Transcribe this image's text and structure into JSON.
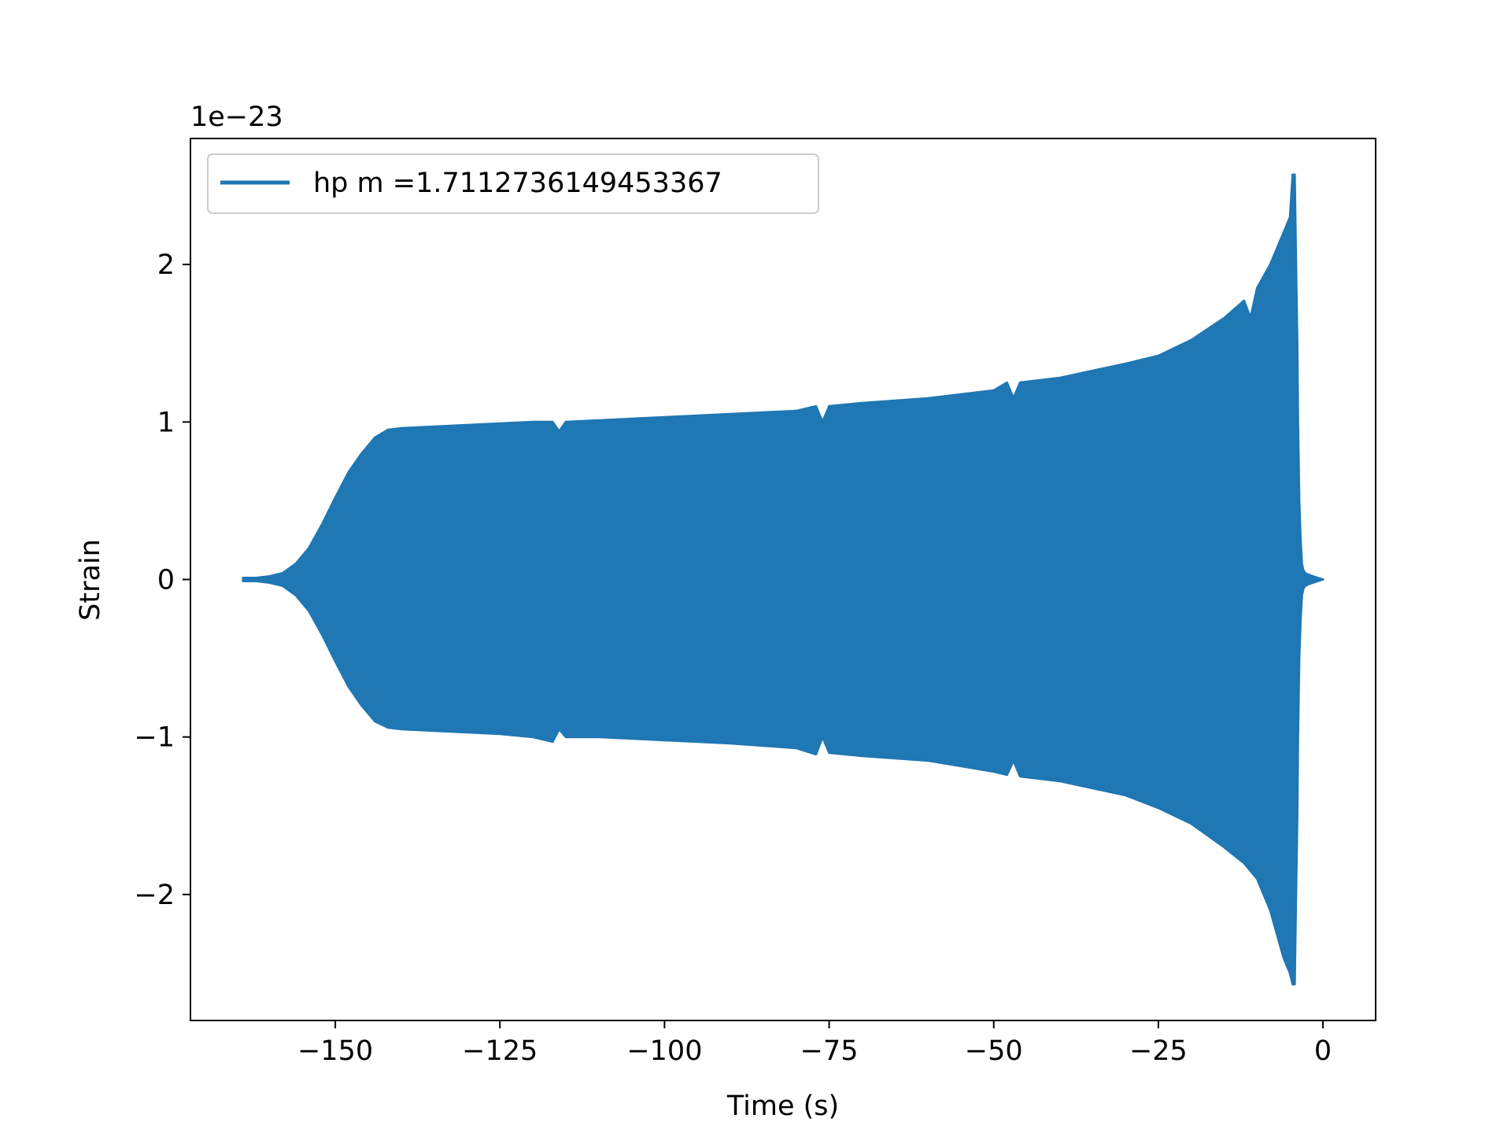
{
  "chart_data": {
    "type": "line",
    "title": "",
    "xlabel": "Time (s)",
    "ylabel": "Strain",
    "y_offset_label": "1e−23",
    "xlim": [
      -172,
      8
    ],
    "ylim": [
      -2.8,
      2.8
    ],
    "grid": false,
    "legend_placement": "upper-left",
    "x_ticks": [
      -150,
      -125,
      -100,
      -75,
      -50,
      -25,
      0
    ],
    "x_tick_labels": [
      "−150",
      "−125",
      "−100",
      "−75",
      "−50",
      "−25",
      "0"
    ],
    "y_ticks": [
      -2,
      -1,
      0,
      1,
      2
    ],
    "y_tick_labels": [
      "−2",
      "−1",
      "0",
      "1",
      "2"
    ],
    "series": [
      {
        "name": "hp m =1.7112736149453367",
        "color": "#1f77b4",
        "envelope": {
          "t": [
            -164,
            -162,
            -160,
            -158,
            -156,
            -154,
            -152,
            -150,
            -148,
            -146,
            -144,
            -142,
            -140,
            -135,
            -130,
            -125,
            -120,
            -117,
            -116,
            -115,
            -110,
            -100,
            -90,
            -80,
            -77,
            -76,
            -75,
            -70,
            -60,
            -50,
            -48,
            -47,
            -46,
            -40,
            -30,
            -25,
            -20,
            -15,
            -12,
            -11,
            -10,
            -8,
            -7,
            -6,
            -5,
            -4.6,
            -4.3,
            -4.1,
            -3.9,
            -3.8,
            -3.6,
            -3.4,
            -3.2,
            -3.0,
            -2.7,
            -2.2,
            -1.5,
            -0.8,
            0
          ],
          "upper": [
            0.01,
            0.01,
            0.02,
            0.04,
            0.1,
            0.2,
            0.35,
            0.52,
            0.68,
            0.8,
            0.9,
            0.95,
            0.96,
            0.97,
            0.98,
            0.99,
            1.0,
            1.0,
            0.94,
            1.0,
            1.01,
            1.03,
            1.05,
            1.07,
            1.1,
            1.0,
            1.1,
            1.12,
            1.15,
            1.2,
            1.25,
            1.15,
            1.25,
            1.28,
            1.37,
            1.42,
            1.52,
            1.66,
            1.77,
            1.66,
            1.85,
            2.0,
            2.1,
            2.2,
            2.3,
            2.57,
            2.57,
            2.0,
            1.5,
            1.0,
            0.5,
            0.25,
            0.1,
            0.06,
            0.04,
            0.03,
            0.02,
            0.01,
            0.0
          ],
          "lower": [
            -0.01,
            -0.01,
            -0.02,
            -0.04,
            -0.1,
            -0.2,
            -0.35,
            -0.52,
            -0.68,
            -0.8,
            -0.9,
            -0.94,
            -0.95,
            -0.96,
            -0.97,
            -0.98,
            -1.0,
            -1.03,
            -0.95,
            -1.0,
            -1.0,
            -1.02,
            -1.04,
            -1.07,
            -1.11,
            -1.0,
            -1.1,
            -1.12,
            -1.15,
            -1.22,
            -1.24,
            -1.15,
            -1.25,
            -1.28,
            -1.37,
            -1.45,
            -1.55,
            -1.7,
            -1.8,
            -1.85,
            -1.9,
            -2.1,
            -2.25,
            -2.4,
            -2.5,
            -2.57,
            -2.57,
            -2.0,
            -1.5,
            -1.0,
            -0.5,
            -0.25,
            -0.1,
            -0.06,
            -0.04,
            -0.03,
            -0.02,
            -0.01,
            0.0
          ]
        }
      }
    ]
  }
}
